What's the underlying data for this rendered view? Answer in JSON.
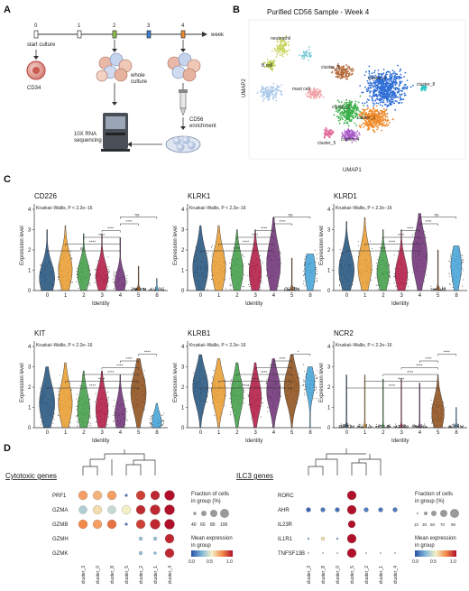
{
  "panels": {
    "A": {
      "label": "A",
      "week_label": "week",
      "timeline_ticks": [
        "0",
        "1",
        "2",
        "3",
        "4"
      ],
      "start_culture": "start culture",
      "cd34": "CD34",
      "whole_culture": "whole\nculture",
      "cd56_enrichment": "CD56\nenrichment",
      "sequencing": "10X RNA\nsequencing"
    },
    "B": {
      "label": "B",
      "title": "Purified CD56 Sample - Week 4",
      "xlabel": "UMAP1",
      "ylabel": "UMAP2",
      "cluster_labels": [
        "neutrophil",
        "B cell",
        "mast cell",
        "cluster_3",
        "cluster_0",
        "cluster_8",
        "cluster_1",
        "cluster_2",
        "cluster_4",
        "cluster_5"
      ]
    },
    "C": {
      "label": "C",
      "stat_text": "Kruskal–Wallis, P < 2.2e−16",
      "xlabel": "Identity",
      "ylabel": "Expression level",
      "categories": [
        "0",
        "1",
        "2",
        "3",
        "4",
        "5",
        "8"
      ],
      "ns": "ns",
      "sig": "****"
    },
    "D": {
      "label": "D",
      "cytotoxic_title": "Cytotoxic genes",
      "ilc3_title": "ILC3 genes",
      "cytotoxic_genes": [
        "PRF1",
        "GZMA",
        "GZMB",
        "GZMH",
        "GZMK"
      ],
      "ilc3_genes": [
        "RORC",
        "AHR",
        "IL23R",
        "IL1R1",
        "TNFSF13B"
      ],
      "cytotoxic_clusters": [
        "cluster_3",
        "cluster_0",
        "cluster_8",
        "cluster_5",
        "cluster_2",
        "cluster_1",
        "cluster_4"
      ],
      "ilc3_clusters": [
        "cluster_3",
        "cluster_8",
        "cluster_0",
        "cluster_5",
        "cluster_2",
        "cluster_1",
        "cluster_4"
      ],
      "frac_title_1": "Fraction of cells",
      "frac_title_2": "in group (%)",
      "frac_ticks_left": [
        "40",
        "60",
        "80",
        "100"
      ],
      "frac_ticks_right": [
        "10",
        "30",
        "50",
        "70",
        "90"
      ],
      "mean_title_1": "Mean expression",
      "mean_title_2": "in group",
      "mean_ticks": [
        "0.0",
        "0.5",
        "1.0"
      ]
    }
  },
  "chart_data": [
    {
      "type": "violin",
      "title": "CD226",
      "categories": [
        "0",
        "1",
        "2",
        "3",
        "4",
        "5",
        "8"
      ],
      "ylim": [
        0,
        4
      ],
      "yticks": [
        0,
        1,
        2,
        3,
        4
      ],
      "series": [
        {
          "values_median_estimate": [
            0.6,
            1.0,
            0.8,
            0.7,
            0.4,
            0.05,
            0.05
          ]
        }
      ],
      "annotation": "Kruskal–Wallis, P < 2.2e−16"
    },
    {
      "type": "violin",
      "title": "KLRK1",
      "categories": [
        "0",
        "1",
        "2",
        "3",
        "4",
        "5",
        "8"
      ],
      "ylim": [
        0,
        4
      ],
      "yticks": [
        0,
        1,
        2,
        3,
        4
      ],
      "series": [
        {
          "values_median_estimate": [
            1.1,
            1.1,
            1.0,
            0.9,
            1.3,
            0.05,
            1.0
          ]
        }
      ],
      "annotation": "Kruskal–Wallis, P < 2.2e−16"
    },
    {
      "type": "violin",
      "title": "KLRD1",
      "categories": [
        "0",
        "1",
        "2",
        "3",
        "4",
        "5",
        "8"
      ],
      "ylim": [
        0,
        4
      ],
      "yticks": [
        0,
        1,
        2,
        3,
        4
      ],
      "series": [
        {
          "values_median_estimate": [
            1.0,
            1.2,
            0.9,
            0.8,
            1.7,
            0.05,
            1.2
          ]
        }
      ],
      "annotation": "Kruskal–Wallis, P < 2.2e−16"
    },
    {
      "type": "violin",
      "title": "KIT",
      "categories": [
        "0",
        "1",
        "2",
        "3",
        "4",
        "5",
        "8"
      ],
      "ylim": [
        0,
        4
      ],
      "yticks": [
        0,
        1,
        2,
        3,
        4
      ],
      "series": [
        {
          "values_median_estimate": [
            1.2,
            1.2,
            0.9,
            0.9,
            0.6,
            1.7,
            0.3
          ]
        }
      ],
      "annotation": "Kruskal–Wallis, P < 2.2e−16"
    },
    {
      "type": "violin",
      "title": "KLRB1",
      "categories": [
        "0",
        "1",
        "2",
        "3",
        "4",
        "5",
        "8"
      ],
      "ylim": [
        0,
        4
      ],
      "yticks": [
        0,
        1,
        2,
        3,
        4
      ],
      "series": [
        {
          "values_median_estimate": [
            2.0,
            1.8,
            1.6,
            1.5,
            1.8,
            2.0,
            2.2
          ]
        }
      ],
      "annotation": "Kruskal–Wallis, P < 2.2e−16"
    },
    {
      "type": "violin",
      "title": "NCR2",
      "categories": [
        "0",
        "1",
        "2",
        "3",
        "4",
        "5",
        "8"
      ],
      "ylim": [
        0,
        4
      ],
      "yticks": [
        0,
        1,
        2,
        3,
        4
      ],
      "series": [
        {
          "values_median_estimate": [
            0.05,
            0.05,
            0.05,
            0.05,
            0.05,
            0.7,
            0.05
          ]
        }
      ],
      "annotation": "Kruskal–Wallis, P < 2.2e−16"
    }
  ]
}
